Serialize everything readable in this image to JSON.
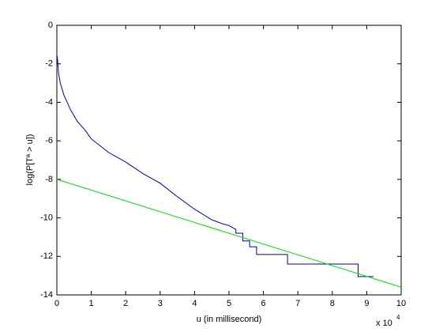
{
  "chart_data": {
    "type": "line",
    "xlabel": "u (in millisecond)",
    "ylabel": "log(P[Tª > u])",
    "x_multiplier": "x 10",
    "x_multiplier_exponent": "4",
    "xlim": [
      0,
      10
    ],
    "xticks": [
      0,
      1,
      2,
      3,
      4,
      5,
      6,
      7,
      8,
      9,
      10
    ],
    "ylim": [
      -14,
      0
    ],
    "yticks": [
      -14,
      -12,
      -10,
      -8,
      -6,
      -4,
      -2,
      0
    ],
    "grid": false,
    "series": [
      {
        "color": "#0000aa",
        "x": [
          0.01,
          0.02,
          0.05,
          0.1,
          0.2,
          0.4,
          0.6,
          0.8,
          1,
          1.5,
          2,
          2.5,
          3,
          3.5,
          4,
          4.5,
          4.8,
          5,
          5.2,
          5.2,
          5.4,
          5.4,
          5.6,
          5.6,
          5.8,
          5.8,
          6.2,
          6.2,
          6.7,
          6.7,
          8.75,
          8.75,
          9.2
        ],
        "values": [
          -1.6,
          -1.8,
          -2.5,
          -3.0,
          -3.6,
          -4.4,
          -5.0,
          -5.4,
          -5.9,
          -6.6,
          -7.1,
          -7.7,
          -8.2,
          -8.9,
          -9.55,
          -10.1,
          -10.3,
          -10.4,
          -10.6,
          -10.8,
          -10.8,
          -11.2,
          -11.2,
          -11.5,
          -11.5,
          -11.9,
          -11.9,
          -11.9,
          -11.9,
          -12.4,
          -12.4,
          -13.05,
          -13.05
        ]
      },
      {
        "color": "#00dd00",
        "x": [
          0,
          10
        ],
        "values": [
          -8,
          -13.6
        ]
      }
    ]
  }
}
